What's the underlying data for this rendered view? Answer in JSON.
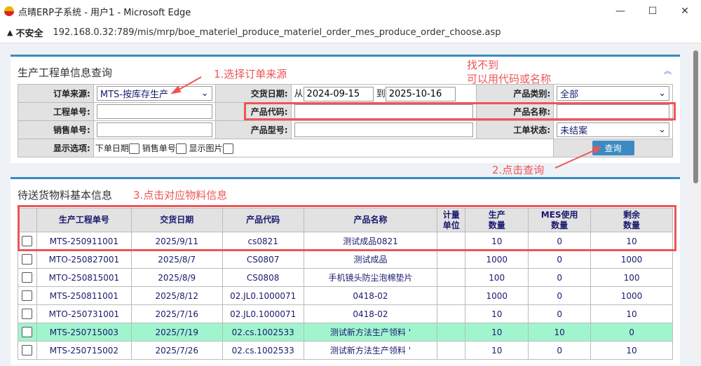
{
  "window": {
    "title": "点晴ERP子系统 - 用户1 - Microsoft Edge",
    "minimize": "—",
    "maximize": "☐",
    "close": "✕"
  },
  "address": {
    "security": "不安全",
    "url": "192.168.0.32:789/mis/mrp/boe_materiel_produce_materiel_order_mes_produce_order_choose.asp"
  },
  "query": {
    "title": "生产工程单信息查询",
    "collapse_icon": "double-chevron-up",
    "order_source_label": "订单来源:",
    "order_source_value": "MTS-按库存生产",
    "delivery_date_label": "交货日期:",
    "from": "从",
    "date_from": "2024-09-15",
    "to": "到",
    "date_to": "2025-10-16",
    "product_category_label": "产品类别:",
    "product_category_value": "全部",
    "work_order_label": "工程单号:",
    "product_code_label": "产品代码:",
    "product_name_label": "产品名称:",
    "sales_order_label": "销售单号:",
    "product_model_label": "产品型号:",
    "status_label": "工单状态:",
    "status_value": "未结案",
    "display_label": "显示选项:",
    "opt_order_date": "下单日期",
    "opt_sales_no": "销售单号",
    "opt_show_image": "显示图片",
    "search_button": "查询"
  },
  "annotations": {
    "a1": "1.选择订单来源",
    "a2a": "找不到",
    "a2b": "可以用代码或名称",
    "a3": "2.点击查询",
    "a4": "3.点击对应物料信息",
    "color": "#e55555"
  },
  "list": {
    "title": "待送货物料基本信息",
    "columns": [
      "生产工程单号",
      "交货日期",
      "产品代码",
      "产品名称",
      "计量单位",
      "生产数量",
      "MES使用数量",
      "剩余数量"
    ],
    "rows": [
      {
        "no": "MTS-250911001",
        "date": "2025/9/11",
        "code": "cs0821",
        "name": "测试成品0821",
        "unit": "",
        "qty": "10",
        "mes": "0",
        "rest": "10"
      },
      {
        "no": "MTO-250827001",
        "date": "2025/8/7",
        "code": "CS0807",
        "name": "测试成品",
        "unit": "",
        "qty": "1000",
        "mes": "0",
        "rest": "1000"
      },
      {
        "no": "MTO-250815001",
        "date": "2025/8/9",
        "code": "CS0808",
        "name": "手机镜头防尘泡棉垫片",
        "unit": "",
        "qty": "100",
        "mes": "0",
        "rest": "100"
      },
      {
        "no": "MTS-250811001",
        "date": "2025/8/12",
        "code": "02.JL0.1000071",
        "name": "0418-02",
        "unit": "",
        "qty": "1000",
        "mes": "0",
        "rest": "1000"
      },
      {
        "no": "MTO-250731001",
        "date": "2025/7/16",
        "code": "02.JL0.1000071",
        "name": "0418-02",
        "unit": "",
        "qty": "10",
        "mes": "0",
        "rest": "10"
      },
      {
        "no": "MTS-250715003",
        "date": "2025/7/19",
        "code": "02.cs.1002533",
        "name": "测试新方法生产领料 '",
        "unit": "",
        "qty": "10",
        "mes": "10",
        "rest": "0",
        "highlight": true
      },
      {
        "no": "MTS-250715002",
        "date": "2025/7/26",
        "code": "02.cs.1002533",
        "name": "测试新方法生产领料 '",
        "unit": "",
        "qty": "10",
        "mes": "0",
        "rest": "10"
      }
    ],
    "highlight_color": "#a0f5cf"
  }
}
